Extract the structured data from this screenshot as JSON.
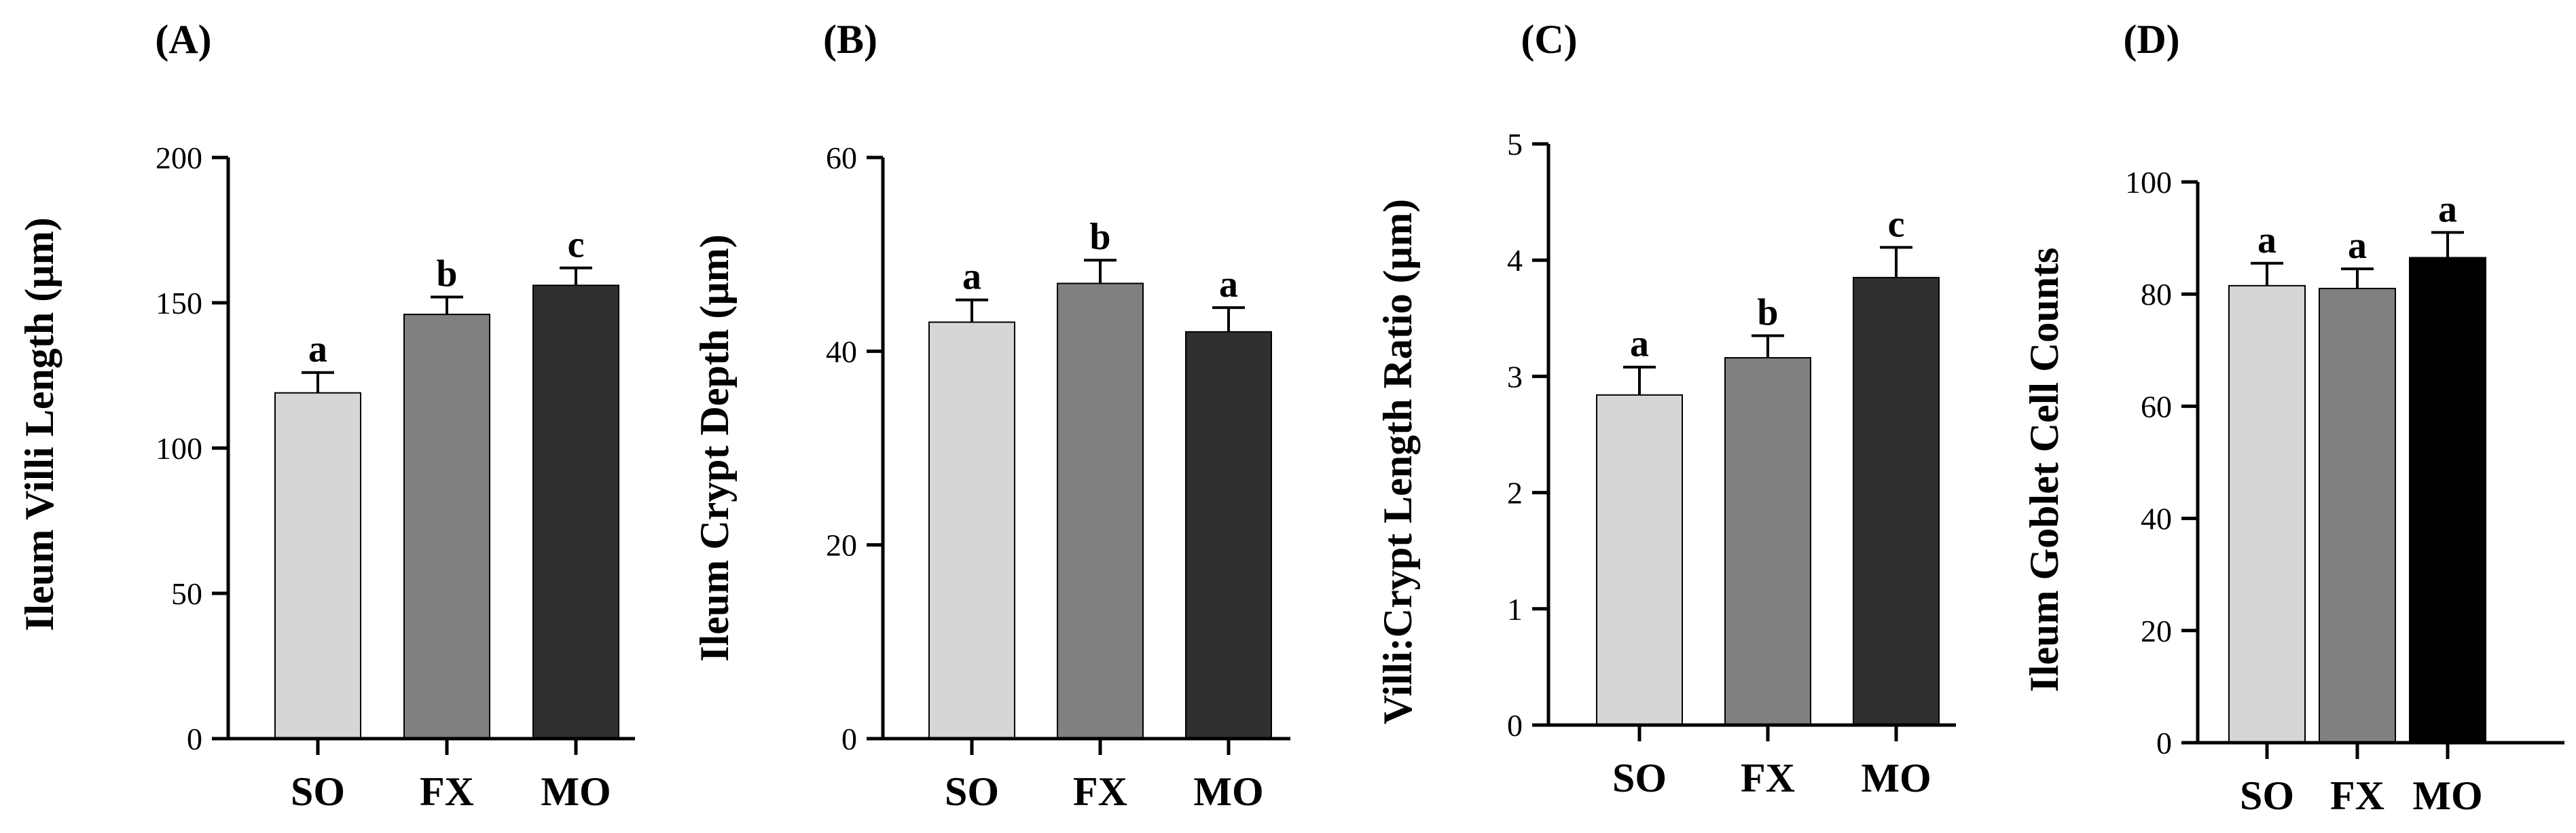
{
  "figure_title": "",
  "chart_data": [
    {
      "type": "bar",
      "panel": "(A)",
      "title": "",
      "xlabel": "",
      "ylabel": "Ileum Villi Length (µm)",
      "ylim": [
        0,
        200
      ],
      "yticks": [
        "0",
        "50",
        "100",
        "150",
        "200"
      ],
      "categories": [
        "SO",
        "FX",
        "MO"
      ],
      "values": [
        119,
        146,
        156
      ],
      "errors": [
        7,
        6,
        6
      ],
      "significance": [
        "a",
        "b",
        "c"
      ],
      "colors": [
        "#d6d6d6",
        "#808080",
        "#303030"
      ]
    },
    {
      "type": "bar",
      "panel": "(B)",
      "title": "",
      "xlabel": "",
      "ylabel": "Ileum Crypt Depth (µm)",
      "ylim": [
        0,
        60
      ],
      "yticks": [
        "0",
        "20",
        "40",
        "60"
      ],
      "categories": [
        "SO",
        "FX",
        "MO"
      ],
      "values": [
        43,
        47,
        42
      ],
      "errors": [
        2.3,
        2.4,
        2.5
      ],
      "significance": [
        "a",
        "b",
        "a"
      ],
      "colors": [
        "#d6d6d6",
        "#808080",
        "#303030"
      ]
    },
    {
      "type": "bar",
      "panel": "(C)",
      "title": "",
      "xlabel": "",
      "ylabel": "Villi:Crypt Length Ratio (µm)",
      "ylim": [
        0,
        5
      ],
      "yticks": [
        "0",
        "1",
        "2",
        "3",
        "4",
        "5"
      ],
      "categories": [
        "SO",
        "FX",
        "MO"
      ],
      "values": [
        2.84,
        3.16,
        3.85
      ],
      "errors": [
        0.24,
        0.19,
        0.26
      ],
      "significance": [
        "a",
        "b",
        "c"
      ],
      "colors": [
        "#d6d6d6",
        "#808080",
        "#303030"
      ]
    },
    {
      "type": "bar",
      "panel": "(D)",
      "title": "",
      "xlabel": "",
      "ylabel": "Ileum Goblet Cell Counts",
      "ylim": [
        0,
        100
      ],
      "yticks": [
        "0",
        "20",
        "40",
        "60",
        "80",
        "100"
      ],
      "categories": [
        "SO",
        "FX",
        "MO"
      ],
      "values": [
        81.5,
        81,
        86.5
      ],
      "errors": [
        4,
        3.5,
        4.5
      ],
      "significance": [
        "a",
        "a",
        "a"
      ],
      "colors": [
        "#d6d6d6",
        "#808080",
        "#000000"
      ]
    }
  ]
}
